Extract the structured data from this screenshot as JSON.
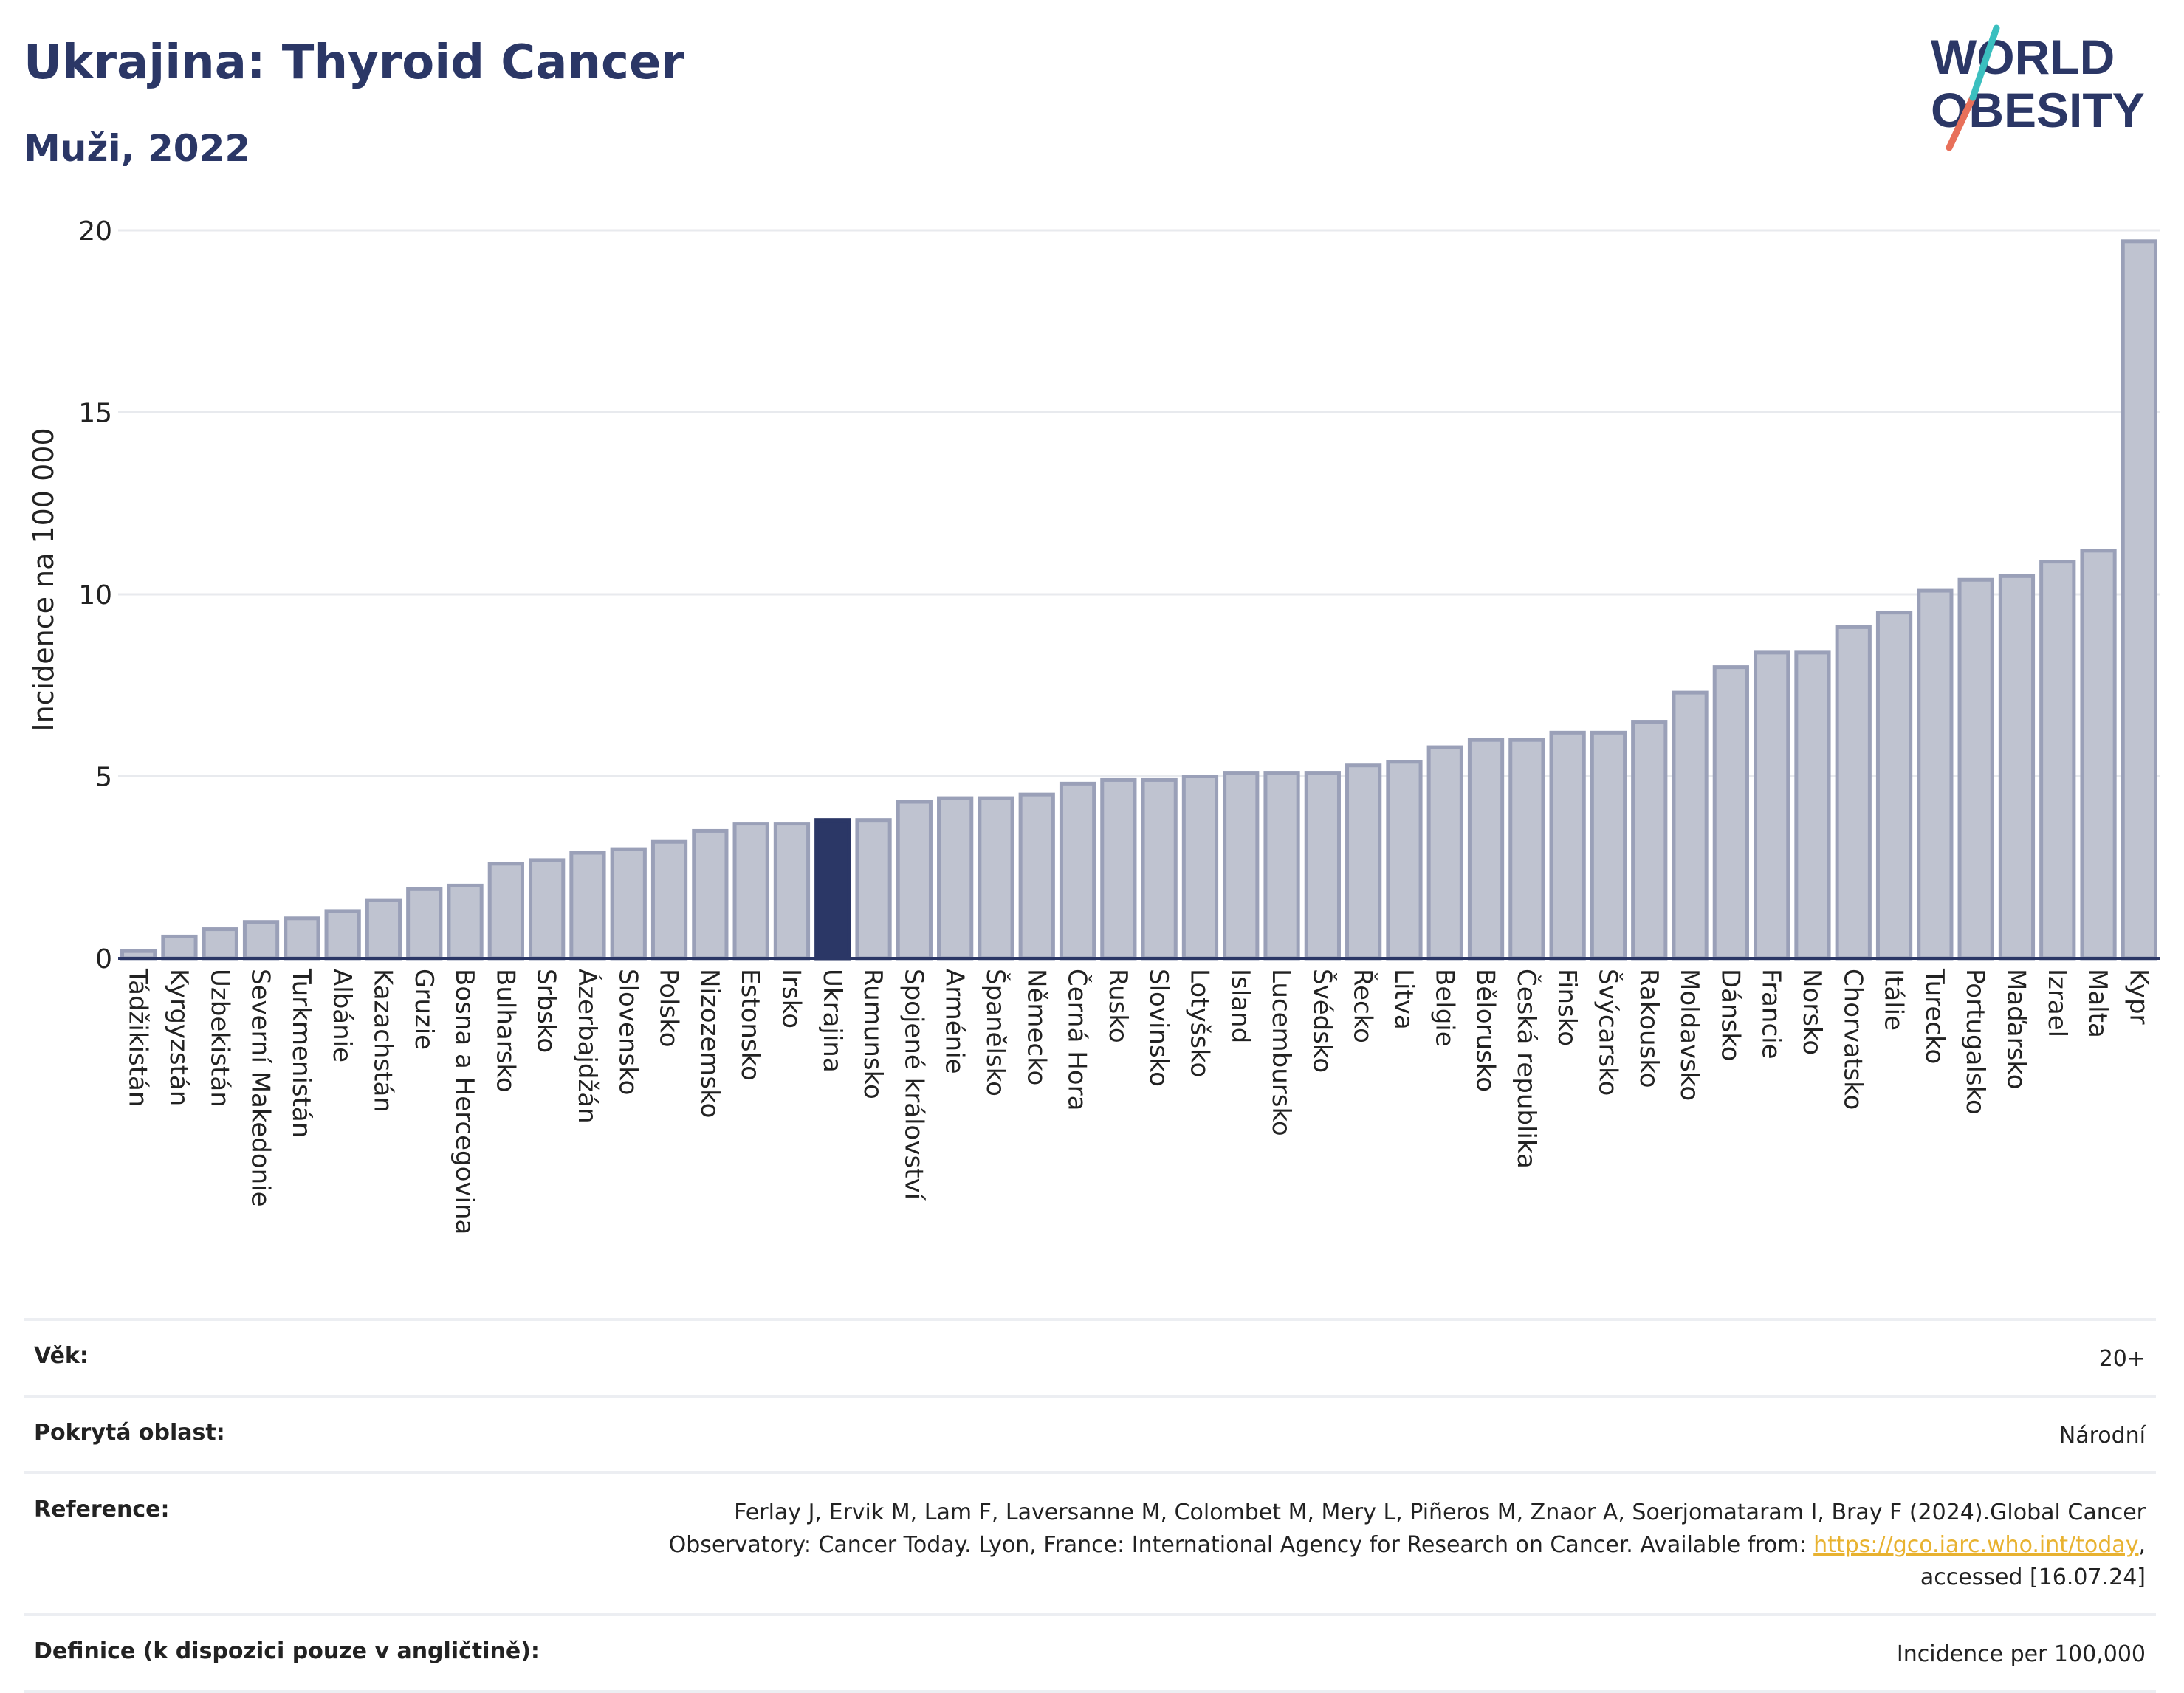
{
  "header": {
    "title": "Ukrajina: Thyroid Cancer",
    "subtitle": "Muži, 2022"
  },
  "logo": {
    "line1": "WORLD",
    "line2": "OBESITY",
    "colors": [
      "#2b3766",
      "#3bbfbf",
      "#e8705a"
    ]
  },
  "chart_data": {
    "type": "bar",
    "ylabel": "Incidence na 100 000",
    "ylim": [
      0,
      20
    ],
    "yticks": [
      0,
      5,
      10,
      15,
      20
    ],
    "grid": true,
    "highlight": "Ukrajina",
    "colors": {
      "bar": "#bfc3d0",
      "bar_edge": "#9aa0b8",
      "highlight": "#2b3766"
    },
    "categories": [
      "Tádžikistán",
      "Kyrgyzstán",
      "Uzbekistán",
      "Severní Makedonie",
      "Turkmenistán",
      "Albánie",
      "Kazachstán",
      "Gruzie",
      "Bosna a Hercegovina",
      "Bulharsko",
      "Srbsko",
      "Ázerbajdžán",
      "Slovensko",
      "Polsko",
      "Nizozemsko",
      "Estonsko",
      "Irsko",
      "Ukrajina",
      "Rumunsko",
      "Spojené království",
      "Arménie",
      "Španělsko",
      "Německo",
      "Černá Hora",
      "Rusko",
      "Slovinsko",
      "Lotyšsko",
      "Island",
      "Lucembursko",
      "Švédsko",
      "Řecko",
      "Litva",
      "Belgie",
      "Bělorusko",
      "Česká republika",
      "Finsko",
      "Švýcarsko",
      "Rakousko",
      "Moldavsko",
      "Dánsko",
      "Francie",
      "Norsko",
      "Chorvatsko",
      "Itálie",
      "Turecko",
      "Portugalsko",
      "Maďarsko",
      "Izrael",
      "Malta",
      "Kypr"
    ],
    "values": [
      0.2,
      0.6,
      0.8,
      1.0,
      1.1,
      1.3,
      1.6,
      1.9,
      2.0,
      2.6,
      2.7,
      2.9,
      3.0,
      3.2,
      3.5,
      3.7,
      3.7,
      3.8,
      3.8,
      4.3,
      4.4,
      4.4,
      4.5,
      4.8,
      4.9,
      4.9,
      5.0,
      5.1,
      5.1,
      5.1,
      5.3,
      5.4,
      5.8,
      6.0,
      6.0,
      6.2,
      6.2,
      6.5,
      7.3,
      8.0,
      8.4,
      8.4,
      9.1,
      9.5,
      10.1,
      10.4,
      10.5,
      10.9,
      11.2,
      19.7
    ]
  },
  "info": {
    "age_label": "Věk:",
    "age_value": "20+",
    "area_label": "Pokrytá oblast:",
    "area_value": "Národní",
    "ref_label": "Reference:",
    "ref_text1": "Ferlay J, Ervik M, Lam F, Laversanne M, Colombet M, Mery L, Piñeros M, Znaor A, Soerjomataram I, Bray F (2024).Global Cancer Observatory: Cancer Today. Lyon, France: International Agency for Research on Cancer. Available from: ",
    "ref_link": "https://gco.iarc.who.int/today",
    "ref_text2": ", accessed [16.07.24]",
    "def_label": "Definice (k dispozici pouze v angličtině):",
    "def_value": "Incidence per 100,000"
  }
}
